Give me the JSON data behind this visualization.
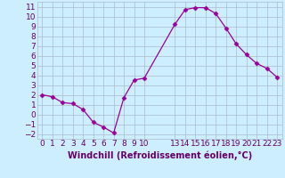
{
  "x": [
    0,
    1,
    2,
    3,
    4,
    5,
    6,
    7,
    8,
    9,
    10,
    13,
    14,
    15,
    16,
    17,
    18,
    19,
    20,
    21,
    22,
    23
  ],
  "y": [
    2,
    1.8,
    1.2,
    1.1,
    0.5,
    -0.8,
    -1.3,
    -1.9,
    1.7,
    3.5,
    3.7,
    9.2,
    10.7,
    10.9,
    10.9,
    10.3,
    8.8,
    7.2,
    6.1,
    5.2,
    4.7,
    3.8
  ],
  "line_color": "#990099",
  "marker": "D",
  "marker_size": 2.5,
  "bg_color": "#cceeff",
  "grid_color": "#aabbcc",
  "xlabel": "Windchill (Refroidissement éolien,°C)",
  "xlim": [
    -0.5,
    23.5
  ],
  "ylim": [
    -2.5,
    11.5
  ],
  "yticks": [
    -2,
    -1,
    0,
    1,
    2,
    3,
    4,
    5,
    6,
    7,
    8,
    9,
    10,
    11
  ],
  "xticks": [
    0,
    1,
    2,
    3,
    4,
    5,
    6,
    7,
    8,
    9,
    10,
    13,
    14,
    15,
    16,
    17,
    18,
    19,
    20,
    21,
    22,
    23
  ],
  "font_color": "#660066",
  "font_size": 6.5,
  "label_font_size": 7,
  "line_width": 0.9
}
